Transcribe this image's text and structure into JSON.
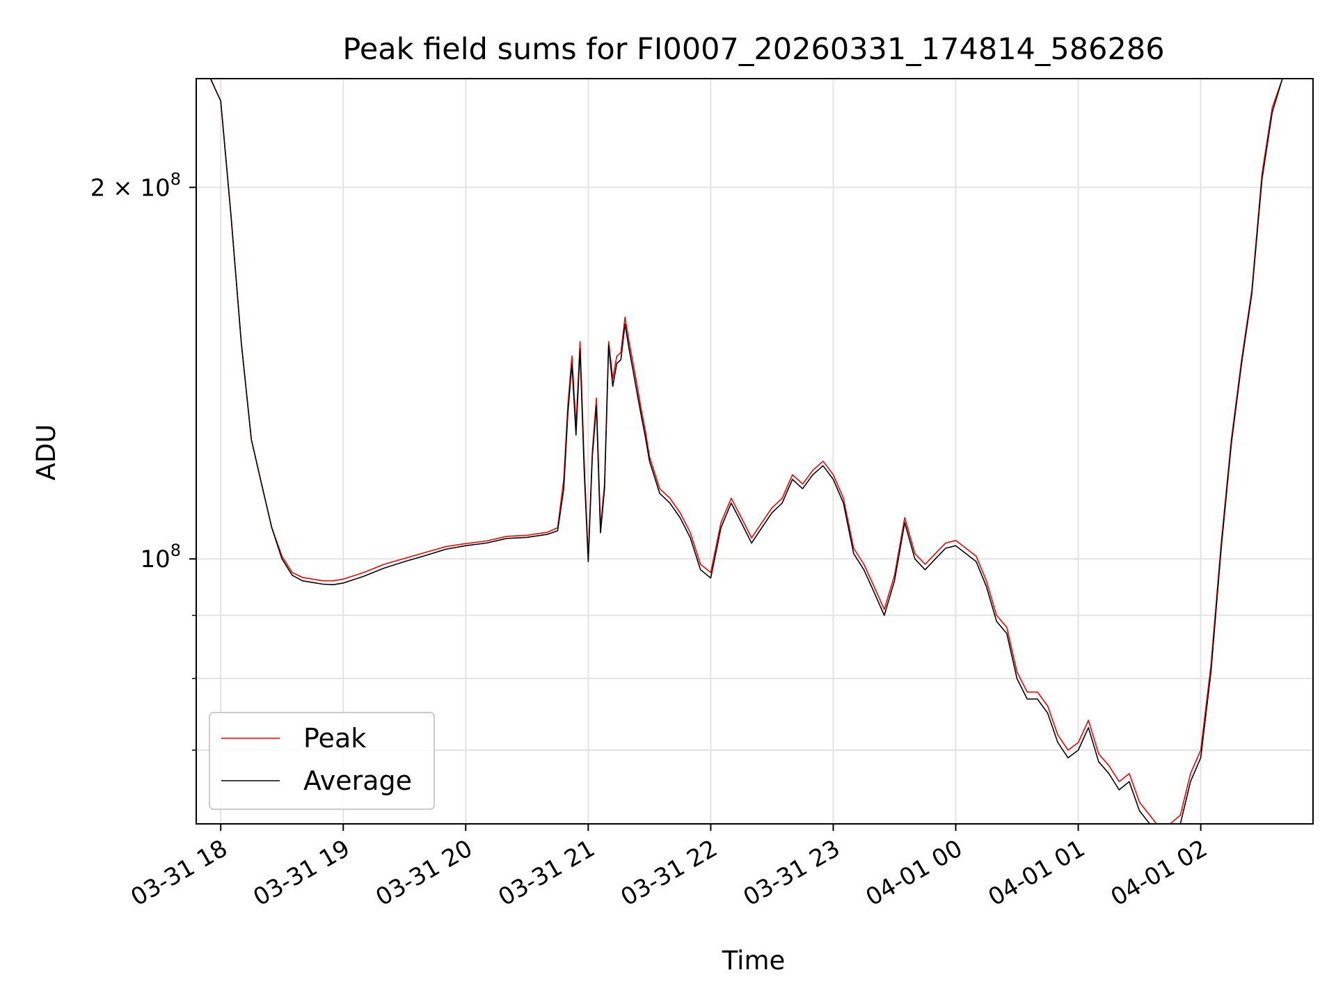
{
  "chart_data": {
    "type": "line",
    "title": "Peak field sums for FI0007_20260331_174814_586286",
    "xlabel": "Time",
    "ylabel": "ADU",
    "yscale": "log",
    "grid": true,
    "legend_position": "lower left",
    "xlim": [
      "2026-03-31 17:48",
      "2026-04-01 02:55"
    ],
    "ylim": [
      61000000,
      245000000
    ],
    "x_ticks": [
      "03-31 18",
      "03-31 19",
      "03-31 20",
      "03-31 21",
      "03-31 22",
      "03-31 23",
      "04-01 00",
      "04-01 01",
      "04-01 02"
    ],
    "y_ticks": [
      {
        "value": 100000000,
        "base": "10",
        "exp": "8",
        "prefix": ""
      },
      {
        "value": 200000000,
        "base": "10",
        "exp": "8",
        "prefix": "2 × "
      }
    ],
    "y_minor_ticks": [
      70000000,
      80000000,
      90000000
    ],
    "x": [
      "03-31 17:48",
      "03-31 17:55",
      "03-31 18:00",
      "03-31 18:05",
      "03-31 18:10",
      "03-31 18:15",
      "03-31 18:20",
      "03-31 18:25",
      "03-31 18:30",
      "03-31 18:35",
      "03-31 18:40",
      "03-31 18:45",
      "03-31 18:50",
      "03-31 18:55",
      "03-31 19:00",
      "03-31 19:10",
      "03-31 19:20",
      "03-31 19:30",
      "03-31 19:40",
      "03-31 19:50",
      "03-31 20:00",
      "03-31 20:10",
      "03-31 20:20",
      "03-31 20:30",
      "03-31 20:40",
      "03-31 20:45",
      "03-31 20:48",
      "03-31 20:50",
      "03-31 20:52",
      "03-31 20:54",
      "03-31 20:56",
      "03-31 20:58",
      "03-31 21:00",
      "03-31 21:02",
      "03-31 21:04",
      "03-31 21:06",
      "03-31 21:08",
      "03-31 21:10",
      "03-31 21:12",
      "03-31 21:14",
      "03-31 21:16",
      "03-31 21:18",
      "03-31 21:20",
      "03-31 21:22",
      "03-31 21:24",
      "03-31 21:26",
      "03-31 21:28",
      "03-31 21:30",
      "03-31 21:35",
      "03-31 21:40",
      "03-31 21:45",
      "03-31 21:50",
      "03-31 21:55",
      "03-31 22:00",
      "03-31 22:05",
      "03-31 22:10",
      "03-31 22:15",
      "03-31 22:20",
      "03-31 22:25",
      "03-31 22:30",
      "03-31 22:35",
      "03-31 22:40",
      "03-31 22:45",
      "03-31 22:50",
      "03-31 22:55",
      "03-31 23:00",
      "03-31 23:05",
      "03-31 23:10",
      "03-31 23:15",
      "03-31 23:20",
      "03-31 23:25",
      "03-31 23:30",
      "03-31 23:35",
      "03-31 23:40",
      "03-31 23:45",
      "03-31 23:50",
      "03-31 23:55",
      "04-01 00:00",
      "04-01 00:05",
      "04-01 00:10",
      "04-01 00:15",
      "04-01 00:20",
      "04-01 00:25",
      "04-01 00:30",
      "04-01 00:35",
      "04-01 00:40",
      "04-01 00:45",
      "04-01 00:50",
      "04-01 00:55",
      "04-01 01:00",
      "04-01 01:05",
      "04-01 01:10",
      "04-01 01:15",
      "04-01 01:20",
      "04-01 01:25",
      "04-01 01:30",
      "04-01 01:35",
      "04-01 01:40",
      "04-01 01:45",
      "04-01 01:50",
      "04-01 01:55",
      "04-01 02:00",
      "04-01 02:05",
      "04-01 02:10",
      "04-01 02:15",
      "04-01 02:20",
      "04-01 02:25",
      "04-01 02:30",
      "04-01 02:35",
      "04-01 02:40",
      "04-01 02:45",
      "04-01 02:50",
      "04-01 02:55"
    ],
    "series": [
      {
        "name": "Peak",
        "color": "#ff0000",
        "values": [
          245000000,
          245000000,
          235000000,
          190000000,
          150000000,
          125000000,
          115000000,
          106000000,
          100500000,
          97500000,
          96600000,
          96300000,
          96000000,
          96000000,
          96300000,
          97500000,
          99000000,
          100100000,
          101200000,
          102300000,
          102900000,
          103400000,
          104300000,
          104500000,
          105100000,
          106000000,
          116000000,
          133000000,
          146000000,
          128000000,
          150000000,
          120000000,
          100000000,
          122000000,
          135000000,
          106000000,
          115000000,
          150000000,
          140000000,
          146000000,
          147000000,
          157000000,
          150000000,
          144000000,
          138000000,
          132000000,
          127000000,
          121000000,
          114000000,
          112000000,
          109000000,
          105000000,
          99000000,
          97500000,
          107000000,
          112000000,
          108000000,
          104000000,
          107000000,
          110000000,
          112000000,
          117000000,
          115000000,
          118000000,
          120000000,
          117000000,
          112000000,
          102000000,
          99000000,
          95000000,
          91000000,
          97000000,
          108000000,
          101000000,
          99000000,
          101000000,
          103000000,
          103500000,
          102000000,
          100500000,
          96000000,
          90000000,
          88000000,
          81000000,
          78000000,
          78000000,
          76000000,
          72000000,
          70000000,
          71000000,
          74000000,
          69500000,
          68000000,
          66000000,
          67000000,
          63500000,
          62000000,
          60500000,
          61000000,
          62000000,
          67000000,
          70000000,
          82000000,
          103000000,
          125000000,
          145000000,
          165000000,
          205000000,
          232000000,
          245000000,
          245000000,
          245000000,
          245000000
        ]
      },
      {
        "name": "Average",
        "color": "#000000",
        "values": [
          245000000,
          245000000,
          235000000,
          190000000,
          150000000,
          125000000,
          115000000,
          106000000,
          100000000,
          97000000,
          96000000,
          95700000,
          95400000,
          95300000,
          95600000,
          96800000,
          98300000,
          99500000,
          100600000,
          101800000,
          102500000,
          103000000,
          103900000,
          104100000,
          104700000,
          105400000,
          114000000,
          131000000,
          144000000,
          126000000,
          148000000,
          118000000,
          99500000,
          121000000,
          133000000,
          105000000,
          114000000,
          149000000,
          138000000,
          144000000,
          145000000,
          155000000,
          148000000,
          142000000,
          136000000,
          130500000,
          125500000,
          120000000,
          113000000,
          111000000,
          108000000,
          104000000,
          98000000,
          96500000,
          106000000,
          111000000,
          107000000,
          103000000,
          106000000,
          109000000,
          111000000,
          116000000,
          114000000,
          117000000,
          119000000,
          116000000,
          111000000,
          101000000,
          98000000,
          94000000,
          90000000,
          96000000,
          107000000,
          100000000,
          98000000,
          100000000,
          102000000,
          102500000,
          101000000,
          99500000,
          95000000,
          89000000,
          87000000,
          80000000,
          77000000,
          77000000,
          75000000,
          71000000,
          69000000,
          70000000,
          73000000,
          68500000,
          67000000,
          65000000,
          66000000,
          62500000,
          61000000,
          59700000,
          60000000,
          61000000,
          66000000,
          69000000,
          81000000,
          102000000,
          124000000,
          144000000,
          164000000,
          203000000,
          230000000,
          245000000,
          245000000,
          245000000,
          245000000
        ]
      }
    ],
    "legend": [
      "Peak",
      "Average"
    ]
  }
}
